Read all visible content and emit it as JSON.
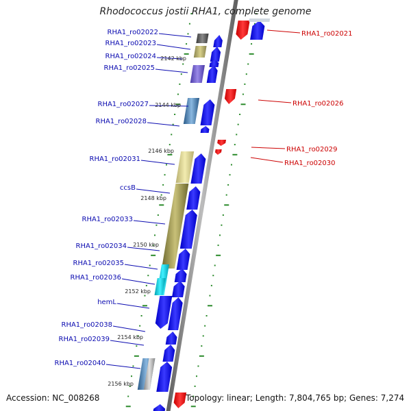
{
  "title": "Rhodococcus jostii RHA1, complete genome",
  "footer": {
    "accession": "Accession: NC_008268",
    "topology": "Topology: linear; Length: 7,804,765 bp; Genes: 7,274"
  },
  "colors": {
    "minus_strand_label": "#0a0ab0",
    "plus_strand_label": "#cc0000",
    "minus_arrow": "#1010ee",
    "plus_arrow": "#ee1111",
    "backbone": "#8c8c8c",
    "tick": "#2a8a2a",
    "tick_label": "#222222"
  },
  "kbp_ticks": [
    "2142 kbp",
    "2144 kbp",
    "2146 kbp",
    "2148 kbp",
    "2150 kbp",
    "2152 kbp",
    "2154 kbp",
    "2156 kbp"
  ],
  "minus_genes": [
    "RHA1_ro02022",
    "RHA1_ro02023",
    "RHA1_ro02024",
    "RHA1_ro02025",
    "RHA1_ro02027",
    "RHA1_ro02028",
    "RHA1_ro02031",
    "ccsB",
    "RHA1_ro02033",
    "RHA1_ro02034",
    "RHA1_ro02035",
    "RHA1_ro02036",
    "hemL",
    "RHA1_ro02038",
    "RHA1_ro02039",
    "RHA1_ro02040"
  ],
  "plus_genes": [
    "RHA1_ro02021",
    "RHA1_ro02026",
    "RHA1_ro02029",
    "RHA1_ro02030"
  ]
}
